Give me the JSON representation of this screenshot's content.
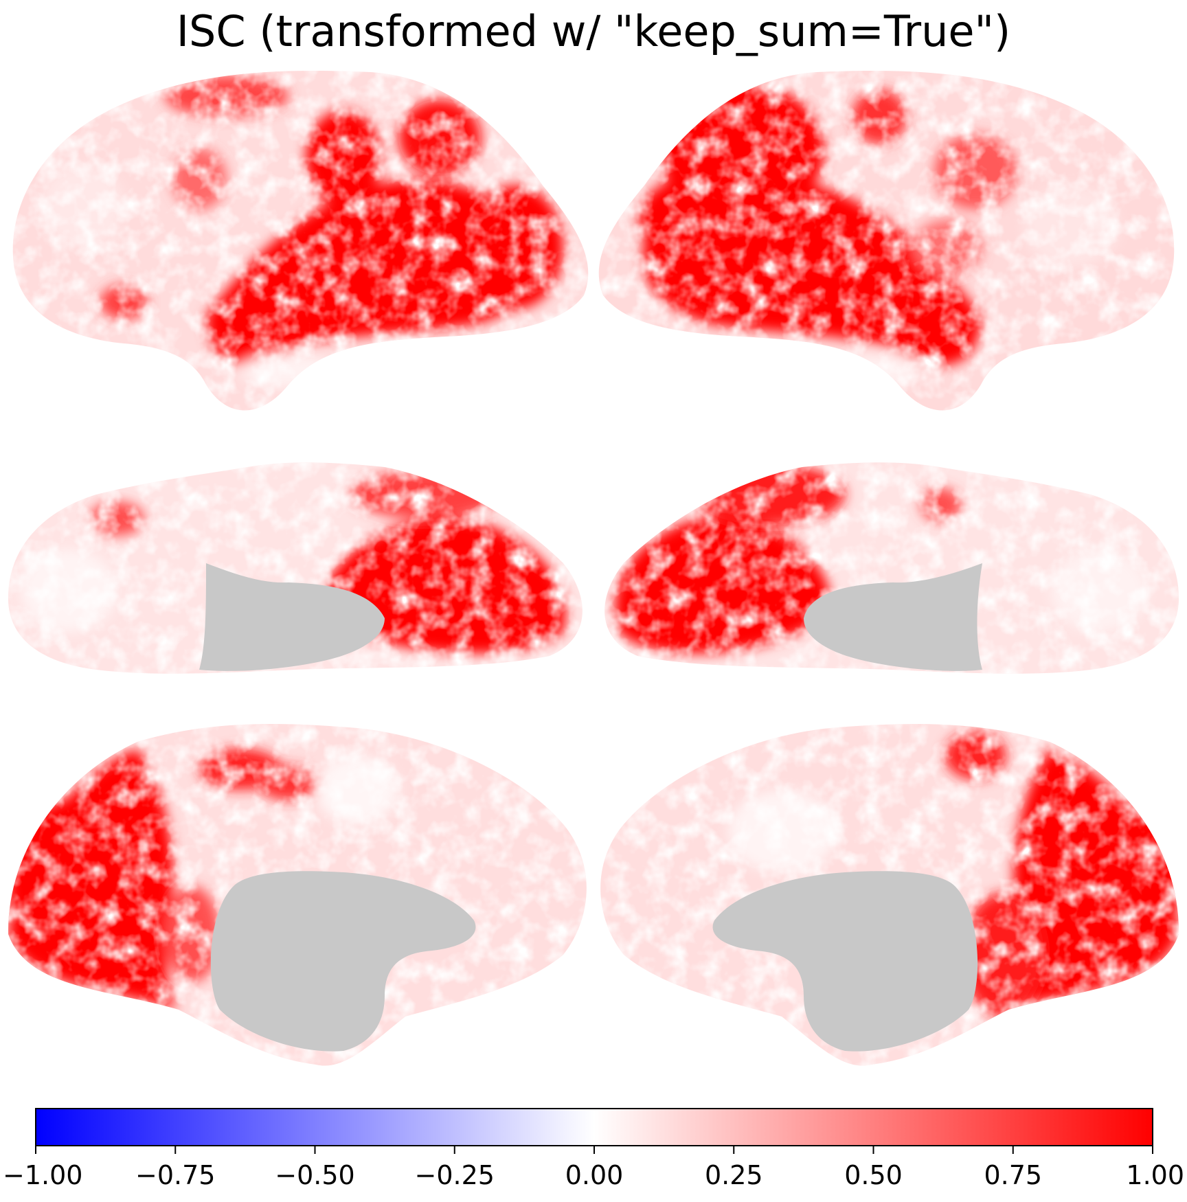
{
  "title": "ISC (transformed w/ \"keep_sum=True\")",
  "colormap": {
    "name": "bwr",
    "low_color": "#0000ff",
    "mid_color": "#ffffff",
    "high_color": "#ff0000",
    "masked_color": "#c8c8c8"
  },
  "colorbar": {
    "vmin": -1.0,
    "vmax": 1.0,
    "ticks": [
      -1.0,
      -0.75,
      -0.5,
      -0.25,
      0.0,
      0.25,
      0.5,
      0.75,
      1.0
    ],
    "tick_labels": [
      "−1.00",
      "−0.75",
      "−0.50",
      "−0.25",
      "0.00",
      "0.25",
      "0.50",
      "0.75",
      "1.00"
    ]
  },
  "views": [
    {
      "name": "left-lateral"
    },
    {
      "name": "right-lateral"
    },
    {
      "name": "left-ventral"
    },
    {
      "name": "right-ventral"
    },
    {
      "name": "left-medial"
    },
    {
      "name": "right-medial"
    }
  ]
}
